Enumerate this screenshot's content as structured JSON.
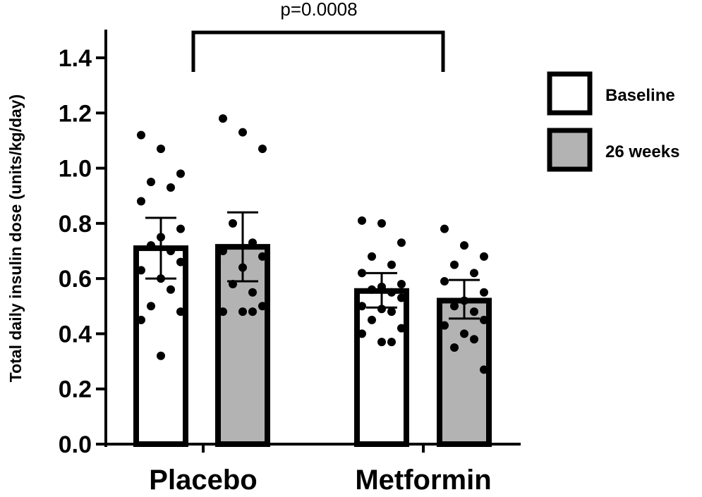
{
  "chart_data": {
    "type": "bar",
    "ylabel": "Total daily insulin dose (units/kg/day)",
    "ylim": [
      0,
      1.4
    ],
    "yticks": [
      "0.0",
      "0.2",
      "0.4",
      "0.6",
      "0.8",
      "1.0",
      "1.2",
      "1.4"
    ],
    "grid": false,
    "legend_position": "right",
    "groups": [
      "Placebo",
      "Metformin"
    ],
    "series": [
      {
        "name": "Baseline",
        "color": "#ffffff",
        "means": [
          0.71,
          0.555
        ],
        "error_low": [
          0.6,
          0.495
        ],
        "error_high": [
          0.82,
          0.62
        ],
        "points": [
          [
            1.12,
            1.07,
            0.98,
            0.95,
            0.93,
            0.88,
            0.78,
            0.75,
            0.72,
            0.7,
            0.66,
            0.63,
            0.6,
            0.56,
            0.5,
            0.48,
            0.45,
            0.32
          ],
          [
            0.81,
            0.8,
            0.73,
            0.68,
            0.65,
            0.62,
            0.58,
            0.57,
            0.56,
            0.55,
            0.53,
            0.5,
            0.49,
            0.48,
            0.45,
            0.42,
            0.4,
            0.37,
            0.37
          ]
        ]
      },
      {
        "name": "26 weeks",
        "color": "#b3b3b4",
        "means": [
          0.715,
          0.52
        ],
        "error_low": [
          0.59,
          0.455
        ],
        "error_high": [
          0.84,
          0.595
        ],
        "points": [
          [
            1.18,
            1.13,
            1.07,
            0.8,
            0.73,
            0.7,
            0.68,
            0.64,
            0.58,
            0.55,
            0.5,
            0.48,
            0.48,
            0.48
          ],
          [
            0.78,
            0.72,
            0.68,
            0.65,
            0.62,
            0.59,
            0.55,
            0.52,
            0.5,
            0.48,
            0.45,
            0.43,
            0.4,
            0.38,
            0.35,
            0.27
          ]
        ]
      }
    ],
    "annotation": {
      "text": "p=0.0008",
      "from": "Placebo Baseline",
      "to": "Metformin 26 weeks"
    }
  }
}
